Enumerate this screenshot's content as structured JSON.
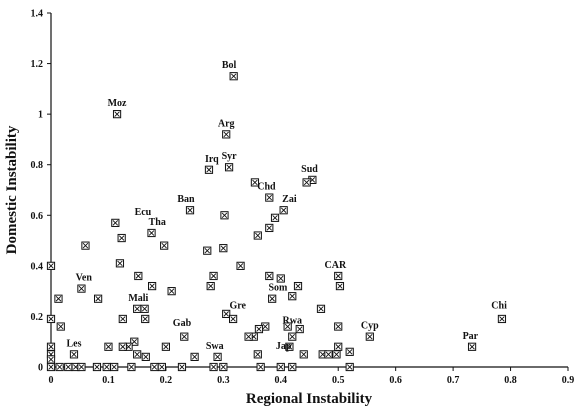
{
  "chart_data": {
    "type": "scatter",
    "title": "",
    "xlabel": "Regional Instability",
    "ylabel": "Domestic Instability",
    "xlim": [
      0,
      0.9
    ],
    "ylim": [
      0,
      1.4
    ],
    "xticks": [
      "0",
      "0.1",
      "0.2",
      "0.3",
      "0.4",
      "0.5",
      "0.6",
      "0.7",
      "0.8",
      "0.9"
    ],
    "yticks": [
      "0",
      "0.2",
      "0.4",
      "0.6",
      "0.8",
      "1",
      "1.2",
      "1.4"
    ],
    "grid": false,
    "labels": [
      {
        "text": "Bol",
        "x": 0.31,
        "y": 1.15
      },
      {
        "text": "Moz",
        "x": 0.115,
        "y": 1.0
      },
      {
        "text": "Arg",
        "x": 0.305,
        "y": 0.92
      },
      {
        "text": "Irq",
        "x": 0.28,
        "y": 0.78
      },
      {
        "text": "Syr",
        "x": 0.31,
        "y": 0.79
      },
      {
        "text": "Sud",
        "x": 0.45,
        "y": 0.74
      },
      {
        "text": "Chd",
        "x": 0.375,
        "y": 0.67
      },
      {
        "text": "Ban",
        "x": 0.235,
        "y": 0.62
      },
      {
        "text": "Zai",
        "x": 0.415,
        "y": 0.62
      },
      {
        "text": "Ecu",
        "x": 0.16,
        "y": 0.57
      },
      {
        "text": "Tha",
        "x": 0.185,
        "y": 0.53
      },
      {
        "text": "Ven",
        "x": 0.057,
        "y": 0.31
      },
      {
        "text": "CAR",
        "x": 0.495,
        "y": 0.36
      },
      {
        "text": "Som",
        "x": 0.395,
        "y": 0.27
      },
      {
        "text": "Mali",
        "x": 0.152,
        "y": 0.23
      },
      {
        "text": "Gre",
        "x": 0.325,
        "y": 0.2
      },
      {
        "text": "Gab",
        "x": 0.228,
        "y": 0.13
      },
      {
        "text": "Rwa",
        "x": 0.42,
        "y": 0.14
      },
      {
        "text": "Cyp",
        "x": 0.555,
        "y": 0.12
      },
      {
        "text": "Chi",
        "x": 0.78,
        "y": 0.2
      },
      {
        "text": "Les",
        "x": 0.04,
        "y": 0.05
      },
      {
        "text": "Swa",
        "x": 0.285,
        "y": 0.04
      },
      {
        "text": "Jap",
        "x": 0.405,
        "y": 0.04
      },
      {
        "text": "Par",
        "x": 0.73,
        "y": 0.08
      }
    ],
    "series": [
      {
        "points": [
          [
            0.318,
            1.15
          ],
          [
            0.115,
            1.0
          ],
          [
            0.305,
            0.92
          ],
          [
            0.275,
            0.78
          ],
          [
            0.31,
            0.79
          ],
          [
            0.455,
            0.74
          ],
          [
            0.445,
            0.73
          ],
          [
            0.405,
            0.62
          ],
          [
            0.39,
            0.59
          ],
          [
            0.38,
            0.55
          ],
          [
            0.36,
            0.52
          ],
          [
            0.355,
            0.73
          ],
          [
            0.38,
            0.67
          ],
          [
            0.242,
            0.62
          ],
          [
            0.302,
            0.6
          ],
          [
            0.112,
            0.57
          ],
          [
            0.123,
            0.51
          ],
          [
            0.175,
            0.53
          ],
          [
            0.197,
            0.48
          ],
          [
            0.06,
            0.48
          ],
          [
            0.272,
            0.46
          ],
          [
            0.3,
            0.47
          ],
          [
            0.33,
            0.4
          ],
          [
            0.12,
            0.41
          ],
          [
            0.152,
            0.36
          ],
          [
            0.283,
            0.36
          ],
          [
            0.0,
            0.4
          ],
          [
            0.053,
            0.31
          ],
          [
            0.013,
            0.27
          ],
          [
            0.082,
            0.27
          ],
          [
            0.176,
            0.32
          ],
          [
            0.21,
            0.3
          ],
          [
            0.278,
            0.32
          ],
          [
            0.38,
            0.36
          ],
          [
            0.4,
            0.35
          ],
          [
            0.5,
            0.36
          ],
          [
            0.503,
            0.32
          ],
          [
            0.385,
            0.27
          ],
          [
            0.42,
            0.28
          ],
          [
            0.43,
            0.32
          ],
          [
            0.47,
            0.23
          ],
          [
            0.15,
            0.23
          ],
          [
            0.163,
            0.23
          ],
          [
            0.164,
            0.19
          ],
          [
            0.125,
            0.19
          ],
          [
            0.0,
            0.19
          ],
          [
            0.017,
            0.16
          ],
          [
            0.305,
            0.21
          ],
          [
            0.317,
            0.19
          ],
          [
            0.373,
            0.16
          ],
          [
            0.362,
            0.15
          ],
          [
            0.353,
            0.12
          ],
          [
            0.344,
            0.12
          ],
          [
            0.412,
            0.16
          ],
          [
            0.433,
            0.15
          ],
          [
            0.42,
            0.12
          ],
          [
            0.5,
            0.16
          ],
          [
            0.232,
            0.12
          ],
          [
            0.145,
            0.1
          ],
          [
            0.135,
            0.08
          ],
          [
            0.1,
            0.08
          ],
          [
            0.125,
            0.08
          ],
          [
            0.15,
            0.05
          ],
          [
            0.165,
            0.04
          ],
          [
            0.2,
            0.08
          ],
          [
            0.555,
            0.12
          ],
          [
            0.785,
            0.19
          ],
          [
            0.733,
            0.08
          ],
          [
            0.04,
            0.05
          ],
          [
            0.0,
            0.08
          ],
          [
            0.0,
            0.05
          ],
          [
            0.0,
            0.03
          ],
          [
            0.25,
            0.04
          ],
          [
            0.29,
            0.04
          ],
          [
            0.415,
            0.08
          ],
          [
            0.44,
            0.05
          ],
          [
            0.473,
            0.05
          ],
          [
            0.483,
            0.05
          ],
          [
            0.497,
            0.05
          ],
          [
            0.5,
            0.08
          ],
          [
            0.52,
            0.06
          ],
          [
            0.36,
            0.05
          ],
          [
            0.0,
            0.0
          ],
          [
            0.015,
            0.0
          ],
          [
            0.03,
            0.0
          ],
          [
            0.043,
            0.0
          ],
          [
            0.053,
            0.0
          ],
          [
            0.08,
            0.0
          ],
          [
            0.097,
            0.0
          ],
          [
            0.11,
            0.0
          ],
          [
            0.14,
            0.0
          ],
          [
            0.18,
            0.0
          ],
          [
            0.193,
            0.0
          ],
          [
            0.228,
            0.0
          ],
          [
            0.283,
            0.0
          ],
          [
            0.3,
            0.0
          ],
          [
            0.365,
            0.0
          ],
          [
            0.4,
            0.0
          ],
          [
            0.42,
            0.0
          ],
          [
            0.52,
            0.0
          ]
        ]
      }
    ]
  }
}
